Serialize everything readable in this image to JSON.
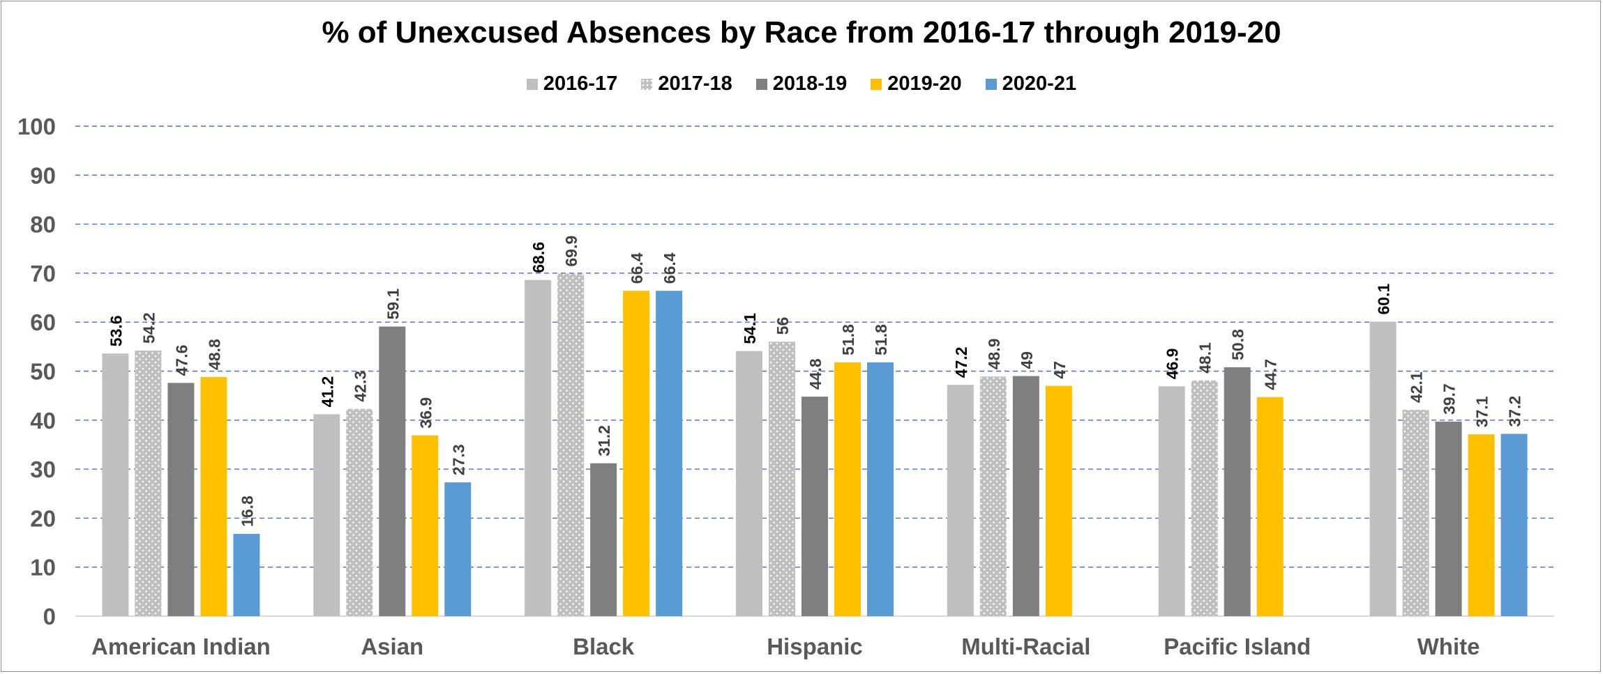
{
  "chart_data": {
    "type": "bar",
    "title": "% of Unexcused Absences by Race from 2016-17 through 2019-20",
    "xlabel": "",
    "ylabel": "",
    "ylim": [
      0,
      100
    ],
    "yticks": [
      0,
      10,
      20,
      30,
      40,
      50,
      60,
      70,
      80,
      90,
      100
    ],
    "grid": true,
    "legend_position": "top",
    "categories": [
      "American Indian",
      "Asian",
      "Black",
      "Hispanic",
      "Multi-Racial",
      "Pacific Island",
      "White"
    ],
    "series": [
      {
        "name": "2016-17",
        "color": "#bfbfbf",
        "pattern": "solid",
        "label_bold": true,
        "values": [
          53.6,
          41.2,
          68.6,
          54.1,
          47.2,
          46.9,
          60.1
        ],
        "labels": [
          "53.6",
          "41.2",
          "68.6",
          "54.1",
          "47.2",
          "46.9",
          "60.1"
        ]
      },
      {
        "name": "2017-18",
        "color": "#bfbfbf",
        "pattern": "dotted",
        "label_bold": false,
        "values": [
          54.2,
          42.3,
          69.9,
          56,
          48.9,
          48.1,
          42.1
        ],
        "labels": [
          "54.2",
          "42.3",
          "69.9",
          "56",
          "48.9",
          "48.1",
          "42.1"
        ]
      },
      {
        "name": "2018-19",
        "color": "#7f7f7f",
        "pattern": "solid",
        "label_bold": false,
        "values": [
          47.6,
          59.1,
          31.2,
          44.8,
          49,
          50.8,
          39.7
        ],
        "labels": [
          "47.6",
          "59.1",
          "31.2",
          "44.8",
          "49",
          "50.8",
          "39.7"
        ]
      },
      {
        "name": "2019-20",
        "color": "#ffc000",
        "pattern": "solid",
        "label_bold": false,
        "values": [
          48.8,
          36.9,
          66.4,
          51.8,
          47,
          44.7,
          37.1
        ],
        "labels": [
          "48.8",
          "36.9",
          "66.4",
          "51.8",
          "47",
          "44.7",
          "37.1"
        ]
      },
      {
        "name": "2020-21",
        "color": "#5b9bd5",
        "pattern": "solid",
        "label_bold": false,
        "values": [
          16.8,
          27.3,
          66.4,
          51.8,
          null,
          null,
          37.2
        ],
        "labels": [
          "16.8",
          "27.3",
          "66.4",
          "51.8",
          "",
          "",
          "37.2"
        ]
      }
    ]
  },
  "colors": {
    "gridline": "#4472c4",
    "axis_text": "#595959",
    "axis_line": "#d9d9d9"
  }
}
